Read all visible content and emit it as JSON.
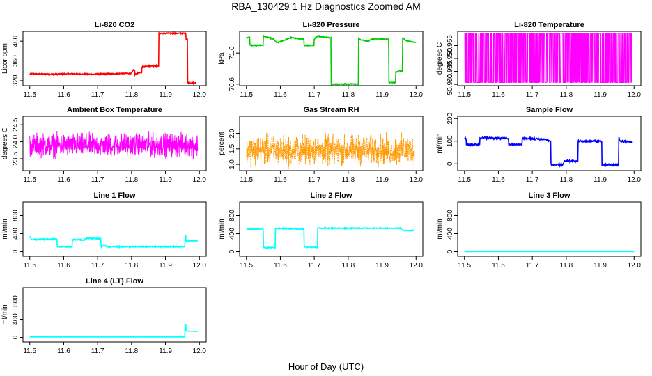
{
  "figure": {
    "title": "RBA_130429  1 Hz Diagnostics Zoomed AM",
    "xlabel": "Hour of Day (UTC)"
  },
  "chart_data": [
    {
      "type": "line",
      "title": "Li-820 CO2",
      "ylabel": "Licor ppm",
      "color": "#ff0000",
      "xlim": [
        11.48,
        12.02
      ],
      "ylim": [
        310,
        420
      ],
      "xticks": [
        "11.5",
        "11.6",
        "11.7",
        "11.8",
        "11.9",
        "12.0"
      ],
      "yticks": [
        "320",
        "360",
        "400"
      ],
      "style": "step",
      "series": [
        {
          "x": [
            11.5,
            11.56,
            11.62,
            11.68,
            11.74,
            11.8,
            11.805,
            11.81,
            11.82,
            11.83,
            11.845,
            11.87,
            11.875,
            11.88,
            11.955,
            11.96,
            11.965,
            11.99
          ],
          "y": [
            334,
            333,
            334,
            333,
            334,
            335,
            341,
            332,
            336,
            348,
            350,
            350,
            350,
            416,
            416,
            404,
            316,
            315
          ]
        }
      ],
      "noise": 1.2
    },
    {
      "type": "line",
      "title": "Li-820 Pressure",
      "ylabel": "kPa",
      "color": "#00cc00",
      "xlim": [
        11.48,
        12.02
      ],
      "ylim": [
        70.58,
        71.28
      ],
      "xticks": [
        "11.5",
        "11.6",
        "11.7",
        "11.8",
        "11.9",
        "12.0"
      ],
      "yticks": [
        "70.6",
        "71.0"
      ],
      "style": "step",
      "series": [
        {
          "x": [
            11.5,
            11.51,
            11.54,
            11.55,
            11.58,
            11.59,
            11.62,
            11.63,
            11.66,
            11.67,
            11.7,
            11.71,
            11.74,
            11.75,
            11.82,
            11.83,
            11.86,
            11.87,
            11.91,
            11.92,
            11.94,
            11.95,
            11.96,
            11.97,
            11.99,
            12.0
          ],
          "y": [
            71.2,
            71.1,
            71.1,
            71.22,
            71.18,
            71.13,
            71.18,
            71.2,
            71.18,
            71.1,
            71.18,
            71.22,
            71.2,
            70.6,
            70.6,
            71.18,
            71.15,
            71.18,
            71.18,
            70.62,
            70.75,
            70.77,
            71.2,
            71.16,
            71.14,
            71.14
          ]
        }
      ],
      "noise": 0.006
    },
    {
      "type": "line",
      "title": "Li-820 Temperature",
      "ylabel": "degrees C",
      "color": "#ff00ff",
      "xlim": [
        11.48,
        12.02
      ],
      "ylim": [
        50.9395,
        50.9605
      ],
      "xticks": [
        "11.5",
        "11.6",
        "11.7",
        "11.8",
        "11.9",
        "12.0"
      ],
      "yticks": [
        "50.940",
        "50.945",
        "50.950",
        "50.955"
      ],
      "style": "binary",
      "levels": [
        50.9407,
        50.9597
      ],
      "noise": 0
    },
    {
      "type": "line",
      "title": "Ambient Box Temperature",
      "ylabel": "degrees C",
      "color": "#ff00ff",
      "xlim": [
        11.48,
        12.02
      ],
      "ylim": [
        23.15,
        24.75
      ],
      "xticks": [
        "11.5",
        "11.6",
        "11.7",
        "11.8",
        "11.9",
        "12.0"
      ],
      "yticks": [
        "23.5",
        "24.0",
        "24.5"
      ],
      "style": "noise",
      "center": 23.9,
      "noise": 0.25,
      "min": 23.2,
      "max": 24.7
    },
    {
      "type": "line",
      "title": "Gas Stream RH",
      "ylabel": "percent",
      "color": "#ff9900",
      "xlim": [
        11.48,
        12.02
      ],
      "ylim": [
        0.8,
        2.55
      ],
      "xticks": [
        "11.5",
        "11.6",
        "11.7",
        "11.8",
        "11.9",
        "12.0"
      ],
      "yticks": [
        "1.0",
        "1.5",
        "2.0"
      ],
      "style": "noise",
      "center": 1.45,
      "noise": 0.35,
      "min": 0.82,
      "max": 2.5,
      "dotted": true
    },
    {
      "type": "line",
      "title": "Sample Flow",
      "ylabel": "ml/min",
      "color": "#0000ff",
      "xlim": [
        11.48,
        12.02
      ],
      "ylim": [
        -30,
        210
      ],
      "xticks": [
        "11.5",
        "11.6",
        "11.7",
        "11.8",
        "11.9",
        "12.0"
      ],
      "yticks": [
        "0",
        "100",
        "200"
      ],
      "style": "step",
      "series": [
        {
          "x": [
            11.5,
            11.505,
            11.54,
            11.545,
            11.625,
            11.63,
            11.665,
            11.67,
            11.74,
            11.75,
            11.755,
            11.79,
            11.795,
            11.83,
            11.835,
            11.9,
            11.905,
            11.95,
            11.955,
            11.96,
            11.995
          ],
          "y": [
            112,
            85,
            85,
            115,
            112,
            85,
            85,
            112,
            108,
            100,
            -5,
            -5,
            12,
            12,
            100,
            100,
            -5,
            -5,
            115,
            100,
            95
          ]
        }
      ],
      "noise": 4
    },
    {
      "type": "line",
      "title": "Line 1 Flow",
      "ylabel": "ml/min",
      "color": "#00ffff",
      "xlim": [
        11.48,
        12.02
      ],
      "ylim": [
        -100,
        1100
      ],
      "xticks": [
        "11.5",
        "11.6",
        "11.7",
        "11.8",
        "11.9",
        "12.0"
      ],
      "yticks": [
        "0",
        "400",
        "800"
      ],
      "style": "step",
      "series": [
        {
          "x": [
            11.5,
            11.505,
            11.575,
            11.58,
            11.62,
            11.625,
            11.66,
            11.665,
            11.705,
            11.71,
            11.72,
            11.73,
            11.955,
            11.957,
            11.96,
            11.995
          ],
          "y": [
            340,
            270,
            280,
            110,
            110,
            270,
            260,
            300,
            290,
            100,
            140,
            110,
            110,
            340,
            240,
            240
          ]
        }
      ],
      "noise": 12
    },
    {
      "type": "line",
      "title": "Line 2 Flow",
      "ylabel": "ml/min",
      "color": "#00ffff",
      "xlim": [
        11.48,
        12.02
      ],
      "ylim": [
        -100,
        1100
      ],
      "xticks": [
        "11.5",
        "11.6",
        "11.7",
        "11.8",
        "11.9",
        "12.0"
      ],
      "yticks": [
        "0",
        "400",
        "800"
      ],
      "style": "step",
      "series": [
        {
          "x": [
            11.5,
            11.545,
            11.55,
            11.58,
            11.585,
            11.665,
            11.67,
            11.705,
            11.71,
            11.955,
            11.96,
            11.995
          ],
          "y": [
            500,
            500,
            90,
            90,
            520,
            500,
            100,
            100,
            520,
            520,
            470,
            470
          ]
        }
      ],
      "noise": 10
    },
    {
      "type": "line",
      "title": "Line 3 Flow",
      "ylabel": "ml/min",
      "color": "#00ffff",
      "xlim": [
        11.48,
        12.02
      ],
      "ylim": [
        -100,
        1100
      ],
      "xticks": [
        "11.5",
        "11.6",
        "11.7",
        "11.8",
        "11.9",
        "12.0"
      ],
      "yticks": [
        "0",
        "400",
        "800"
      ],
      "style": "step",
      "series": [
        {
          "x": [
            11.5,
            12.0
          ],
          "y": [
            2,
            2
          ]
        }
      ],
      "noise": 0
    },
    {
      "type": "line",
      "title": "Line 4 (LT) Flow",
      "ylabel": "ml/min",
      "color": "#00ffff",
      "xlim": [
        11.48,
        12.02
      ],
      "ylim": [
        -100,
        1100
      ],
      "xticks": [
        "11.5",
        "11.6",
        "11.7",
        "11.8",
        "11.9",
        "12.0"
      ],
      "yticks": [
        "0",
        "400",
        "800"
      ],
      "style": "step",
      "series": [
        {
          "x": [
            11.5,
            11.955,
            11.957,
            11.96,
            11.995
          ],
          "y": [
            10,
            10,
            280,
            140,
            130
          ]
        }
      ],
      "noise": 2
    }
  ]
}
